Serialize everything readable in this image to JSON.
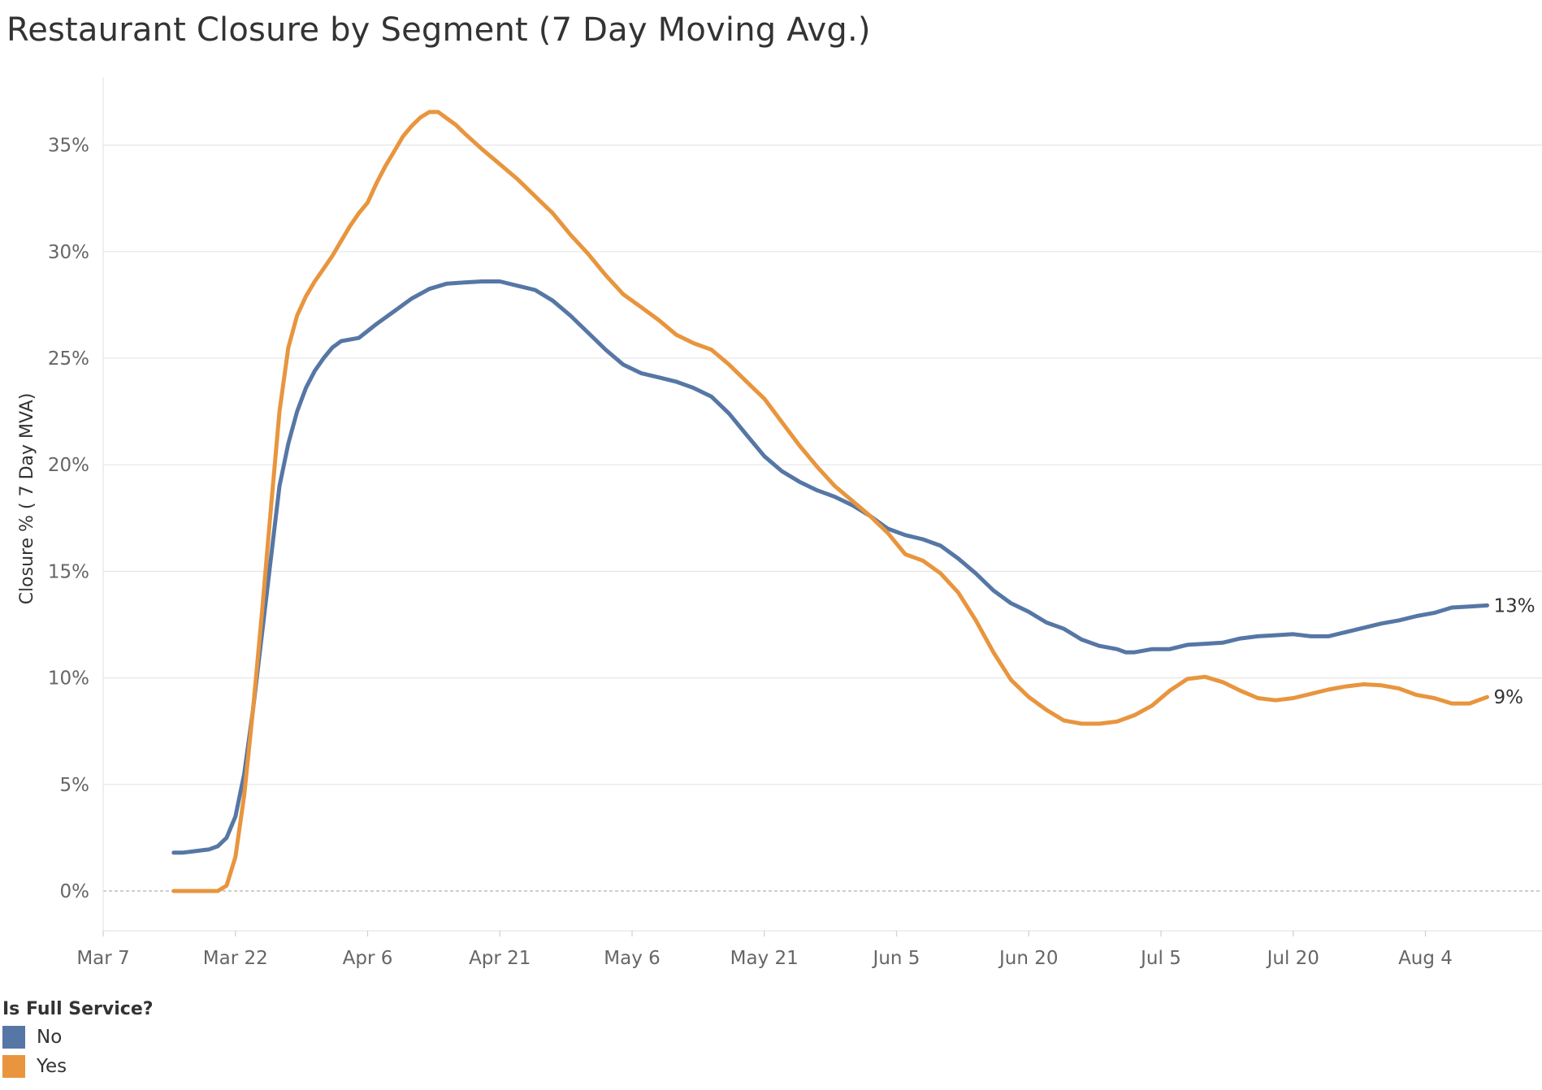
{
  "title": "Restaurant Closure by Segment (7 Day Moving Avg.)",
  "legend": {
    "title": "Is Full Service?",
    "items": [
      {
        "label": "No",
        "color": "#5677a5"
      },
      {
        "label": "Yes",
        "color": "#e8953e"
      }
    ]
  },
  "chart_data": {
    "type": "line",
    "title": "Restaurant Closure by Segment (7 Day Moving Avg.)",
    "xlabel": "",
    "ylabel": "Closure % ( 7 Day MVA)",
    "x_ticks": [
      "Mar 7",
      "Mar 22",
      "Apr 6",
      "Apr 21",
      "May 6",
      "May 21",
      "Jun 5",
      "Jun 20",
      "Jul 5",
      "Jul 20",
      "Aug 4"
    ],
    "y_ticks": [
      "0%",
      "5%",
      "10%",
      "15%",
      "20%",
      "25%",
      "30%",
      "35%"
    ],
    "ylim": [
      0,
      37
    ],
    "xlim": [
      "2020-03-07",
      "2020-08-17"
    ],
    "grid": "horizontal",
    "legend_position": "bottom-left",
    "series": [
      {
        "name": "No",
        "color": "#5677a5",
        "end_label": "13%",
        "points": [
          [
            "2020-03-15",
            1.8
          ],
          [
            "2020-03-16",
            1.8
          ],
          [
            "2020-03-17",
            1.85
          ],
          [
            "2020-03-18",
            1.9
          ],
          [
            "2020-03-19",
            1.95
          ],
          [
            "2020-03-20",
            2.1
          ],
          [
            "2020-03-21",
            2.5
          ],
          [
            "2020-03-22",
            3.5
          ],
          [
            "2020-03-23",
            5.5
          ],
          [
            "2020-03-24",
            8.5
          ],
          [
            "2020-03-25",
            12.0
          ],
          [
            "2020-03-26",
            15.5
          ],
          [
            "2020-03-27",
            19.0
          ],
          [
            "2020-03-28",
            21.0
          ],
          [
            "2020-03-29",
            22.5
          ],
          [
            "2020-03-30",
            23.6
          ],
          [
            "2020-03-31",
            24.4
          ],
          [
            "2020-04-01",
            25.0
          ],
          [
            "2020-04-02",
            25.5
          ],
          [
            "2020-04-03",
            25.8
          ],
          [
            "2020-04-05",
            25.95
          ],
          [
            "2020-04-07",
            26.6
          ],
          [
            "2020-04-09",
            27.2
          ],
          [
            "2020-04-11",
            27.8
          ],
          [
            "2020-04-13",
            28.25
          ],
          [
            "2020-04-15",
            28.5
          ],
          [
            "2020-04-17",
            28.55
          ],
          [
            "2020-04-19",
            28.6
          ],
          [
            "2020-04-21",
            28.6
          ],
          [
            "2020-04-23",
            28.4
          ],
          [
            "2020-04-25",
            28.2
          ],
          [
            "2020-04-27",
            27.7
          ],
          [
            "2020-04-29",
            27.0
          ],
          [
            "2020-05-01",
            26.2
          ],
          [
            "2020-05-03",
            25.4
          ],
          [
            "2020-05-05",
            24.7
          ],
          [
            "2020-05-07",
            24.3
          ],
          [
            "2020-05-09",
            24.1
          ],
          [
            "2020-05-11",
            23.9
          ],
          [
            "2020-05-13",
            23.6
          ],
          [
            "2020-05-15",
            23.2
          ],
          [
            "2020-05-17",
            22.4
          ],
          [
            "2020-05-19",
            21.4
          ],
          [
            "2020-05-21",
            20.4
          ],
          [
            "2020-05-23",
            19.7
          ],
          [
            "2020-05-25",
            19.2
          ],
          [
            "2020-05-27",
            18.8
          ],
          [
            "2020-05-29",
            18.5
          ],
          [
            "2020-05-31",
            18.1
          ],
          [
            "2020-06-02",
            17.6
          ],
          [
            "2020-06-04",
            17.0
          ],
          [
            "2020-06-06",
            16.7
          ],
          [
            "2020-06-08",
            16.5
          ],
          [
            "2020-06-10",
            16.2
          ],
          [
            "2020-06-12",
            15.6
          ],
          [
            "2020-06-14",
            14.9
          ],
          [
            "2020-06-16",
            14.1
          ],
          [
            "2020-06-18",
            13.5
          ],
          [
            "2020-06-20",
            13.1
          ],
          [
            "2020-06-22",
            12.6
          ],
          [
            "2020-06-24",
            12.3
          ],
          [
            "2020-06-26",
            11.8
          ],
          [
            "2020-06-28",
            11.5
          ],
          [
            "2020-06-30",
            11.35
          ],
          [
            "2020-07-01",
            11.2
          ],
          [
            "2020-07-02",
            11.2
          ],
          [
            "2020-07-04",
            11.35
          ],
          [
            "2020-07-06",
            11.35
          ],
          [
            "2020-07-08",
            11.55
          ],
          [
            "2020-07-10",
            11.6
          ],
          [
            "2020-07-12",
            11.65
          ],
          [
            "2020-07-14",
            11.85
          ],
          [
            "2020-07-16",
            11.95
          ],
          [
            "2020-07-18",
            12.0
          ],
          [
            "2020-07-20",
            12.05
          ],
          [
            "2020-07-22",
            11.95
          ],
          [
            "2020-07-24",
            11.95
          ],
          [
            "2020-07-26",
            12.15
          ],
          [
            "2020-07-28",
            12.35
          ],
          [
            "2020-07-30",
            12.55
          ],
          [
            "2020-08-01",
            12.7
          ],
          [
            "2020-08-03",
            12.9
          ],
          [
            "2020-08-05",
            13.05
          ],
          [
            "2020-08-07",
            13.3
          ],
          [
            "2020-08-09",
            13.35
          ],
          [
            "2020-08-11",
            13.4
          ]
        ]
      },
      {
        "name": "Yes",
        "color": "#e8953e",
        "end_label": "9%",
        "points": [
          [
            "2020-03-15",
            0.0
          ],
          [
            "2020-03-16",
            0.0
          ],
          [
            "2020-03-17",
            0.0
          ],
          [
            "2020-03-18",
            0.0
          ],
          [
            "2020-03-19",
            0.0
          ],
          [
            "2020-03-20",
            0.0
          ],
          [
            "2020-03-21",
            0.25
          ],
          [
            "2020-03-22",
            1.6
          ],
          [
            "2020-03-23",
            4.5
          ],
          [
            "2020-03-24",
            8.5
          ],
          [
            "2020-03-25",
            13.0
          ],
          [
            "2020-03-26",
            17.8
          ],
          [
            "2020-03-27",
            22.5
          ],
          [
            "2020-03-28",
            25.5
          ],
          [
            "2020-03-29",
            27.0
          ],
          [
            "2020-03-30",
            27.9
          ],
          [
            "2020-03-31",
            28.6
          ],
          [
            "2020-04-01",
            29.2
          ],
          [
            "2020-04-02",
            29.8
          ],
          [
            "2020-04-03",
            30.5
          ],
          [
            "2020-04-04",
            31.2
          ],
          [
            "2020-04-05",
            31.8
          ],
          [
            "2020-04-06",
            32.3
          ],
          [
            "2020-04-07",
            33.2
          ],
          [
            "2020-04-08",
            34.0
          ],
          [
            "2020-04-09",
            34.7
          ],
          [
            "2020-04-10",
            35.4
          ],
          [
            "2020-04-11",
            35.9
          ],
          [
            "2020-04-12",
            36.3
          ],
          [
            "2020-04-13",
            36.55
          ],
          [
            "2020-04-14",
            36.55
          ],
          [
            "2020-04-15",
            36.25
          ],
          [
            "2020-04-16",
            35.95
          ],
          [
            "2020-04-17",
            35.55
          ],
          [
            "2020-04-19",
            34.8
          ],
          [
            "2020-04-21",
            34.1
          ],
          [
            "2020-04-23",
            33.4
          ],
          [
            "2020-04-25",
            32.6
          ],
          [
            "2020-04-27",
            31.8
          ],
          [
            "2020-04-29",
            30.8
          ],
          [
            "2020-05-01",
            29.9
          ],
          [
            "2020-05-03",
            28.9
          ],
          [
            "2020-05-05",
            28.0
          ],
          [
            "2020-05-07",
            27.4
          ],
          [
            "2020-05-09",
            26.8
          ],
          [
            "2020-05-11",
            26.1
          ],
          [
            "2020-05-13",
            25.7
          ],
          [
            "2020-05-15",
            25.4
          ],
          [
            "2020-05-17",
            24.7
          ],
          [
            "2020-05-19",
            23.9
          ],
          [
            "2020-05-21",
            23.1
          ],
          [
            "2020-05-23",
            22.0
          ],
          [
            "2020-05-25",
            20.9
          ],
          [
            "2020-05-27",
            19.9
          ],
          [
            "2020-05-29",
            19.0
          ],
          [
            "2020-05-31",
            18.3
          ],
          [
            "2020-06-02",
            17.6
          ],
          [
            "2020-06-04",
            16.8
          ],
          [
            "2020-06-06",
            15.8
          ],
          [
            "2020-06-08",
            15.5
          ],
          [
            "2020-06-10",
            14.9
          ],
          [
            "2020-06-12",
            14.0
          ],
          [
            "2020-06-14",
            12.7
          ],
          [
            "2020-06-16",
            11.2
          ],
          [
            "2020-06-18",
            9.9
          ],
          [
            "2020-06-20",
            9.1
          ],
          [
            "2020-06-22",
            8.5
          ],
          [
            "2020-06-24",
            8.0
          ],
          [
            "2020-06-26",
            7.85
          ],
          [
            "2020-06-28",
            7.85
          ],
          [
            "2020-06-30",
            7.95
          ],
          [
            "2020-07-02",
            8.25
          ],
          [
            "2020-07-04",
            8.7
          ],
          [
            "2020-07-06",
            9.4
          ],
          [
            "2020-07-08",
            9.95
          ],
          [
            "2020-07-10",
            10.05
          ],
          [
            "2020-07-12",
            9.8
          ],
          [
            "2020-07-14",
            9.4
          ],
          [
            "2020-07-16",
            9.05
          ],
          [
            "2020-07-18",
            8.95
          ],
          [
            "2020-07-20",
            9.05
          ],
          [
            "2020-07-22",
            9.25
          ],
          [
            "2020-07-24",
            9.45
          ],
          [
            "2020-07-26",
            9.6
          ],
          [
            "2020-07-28",
            9.7
          ],
          [
            "2020-07-30",
            9.65
          ],
          [
            "2020-08-01",
            9.5
          ],
          [
            "2020-08-03",
            9.2
          ],
          [
            "2020-08-05",
            9.05
          ],
          [
            "2020-08-07",
            8.8
          ],
          [
            "2020-08-09",
            8.8
          ],
          [
            "2020-08-11",
            9.1
          ]
        ]
      }
    ]
  }
}
